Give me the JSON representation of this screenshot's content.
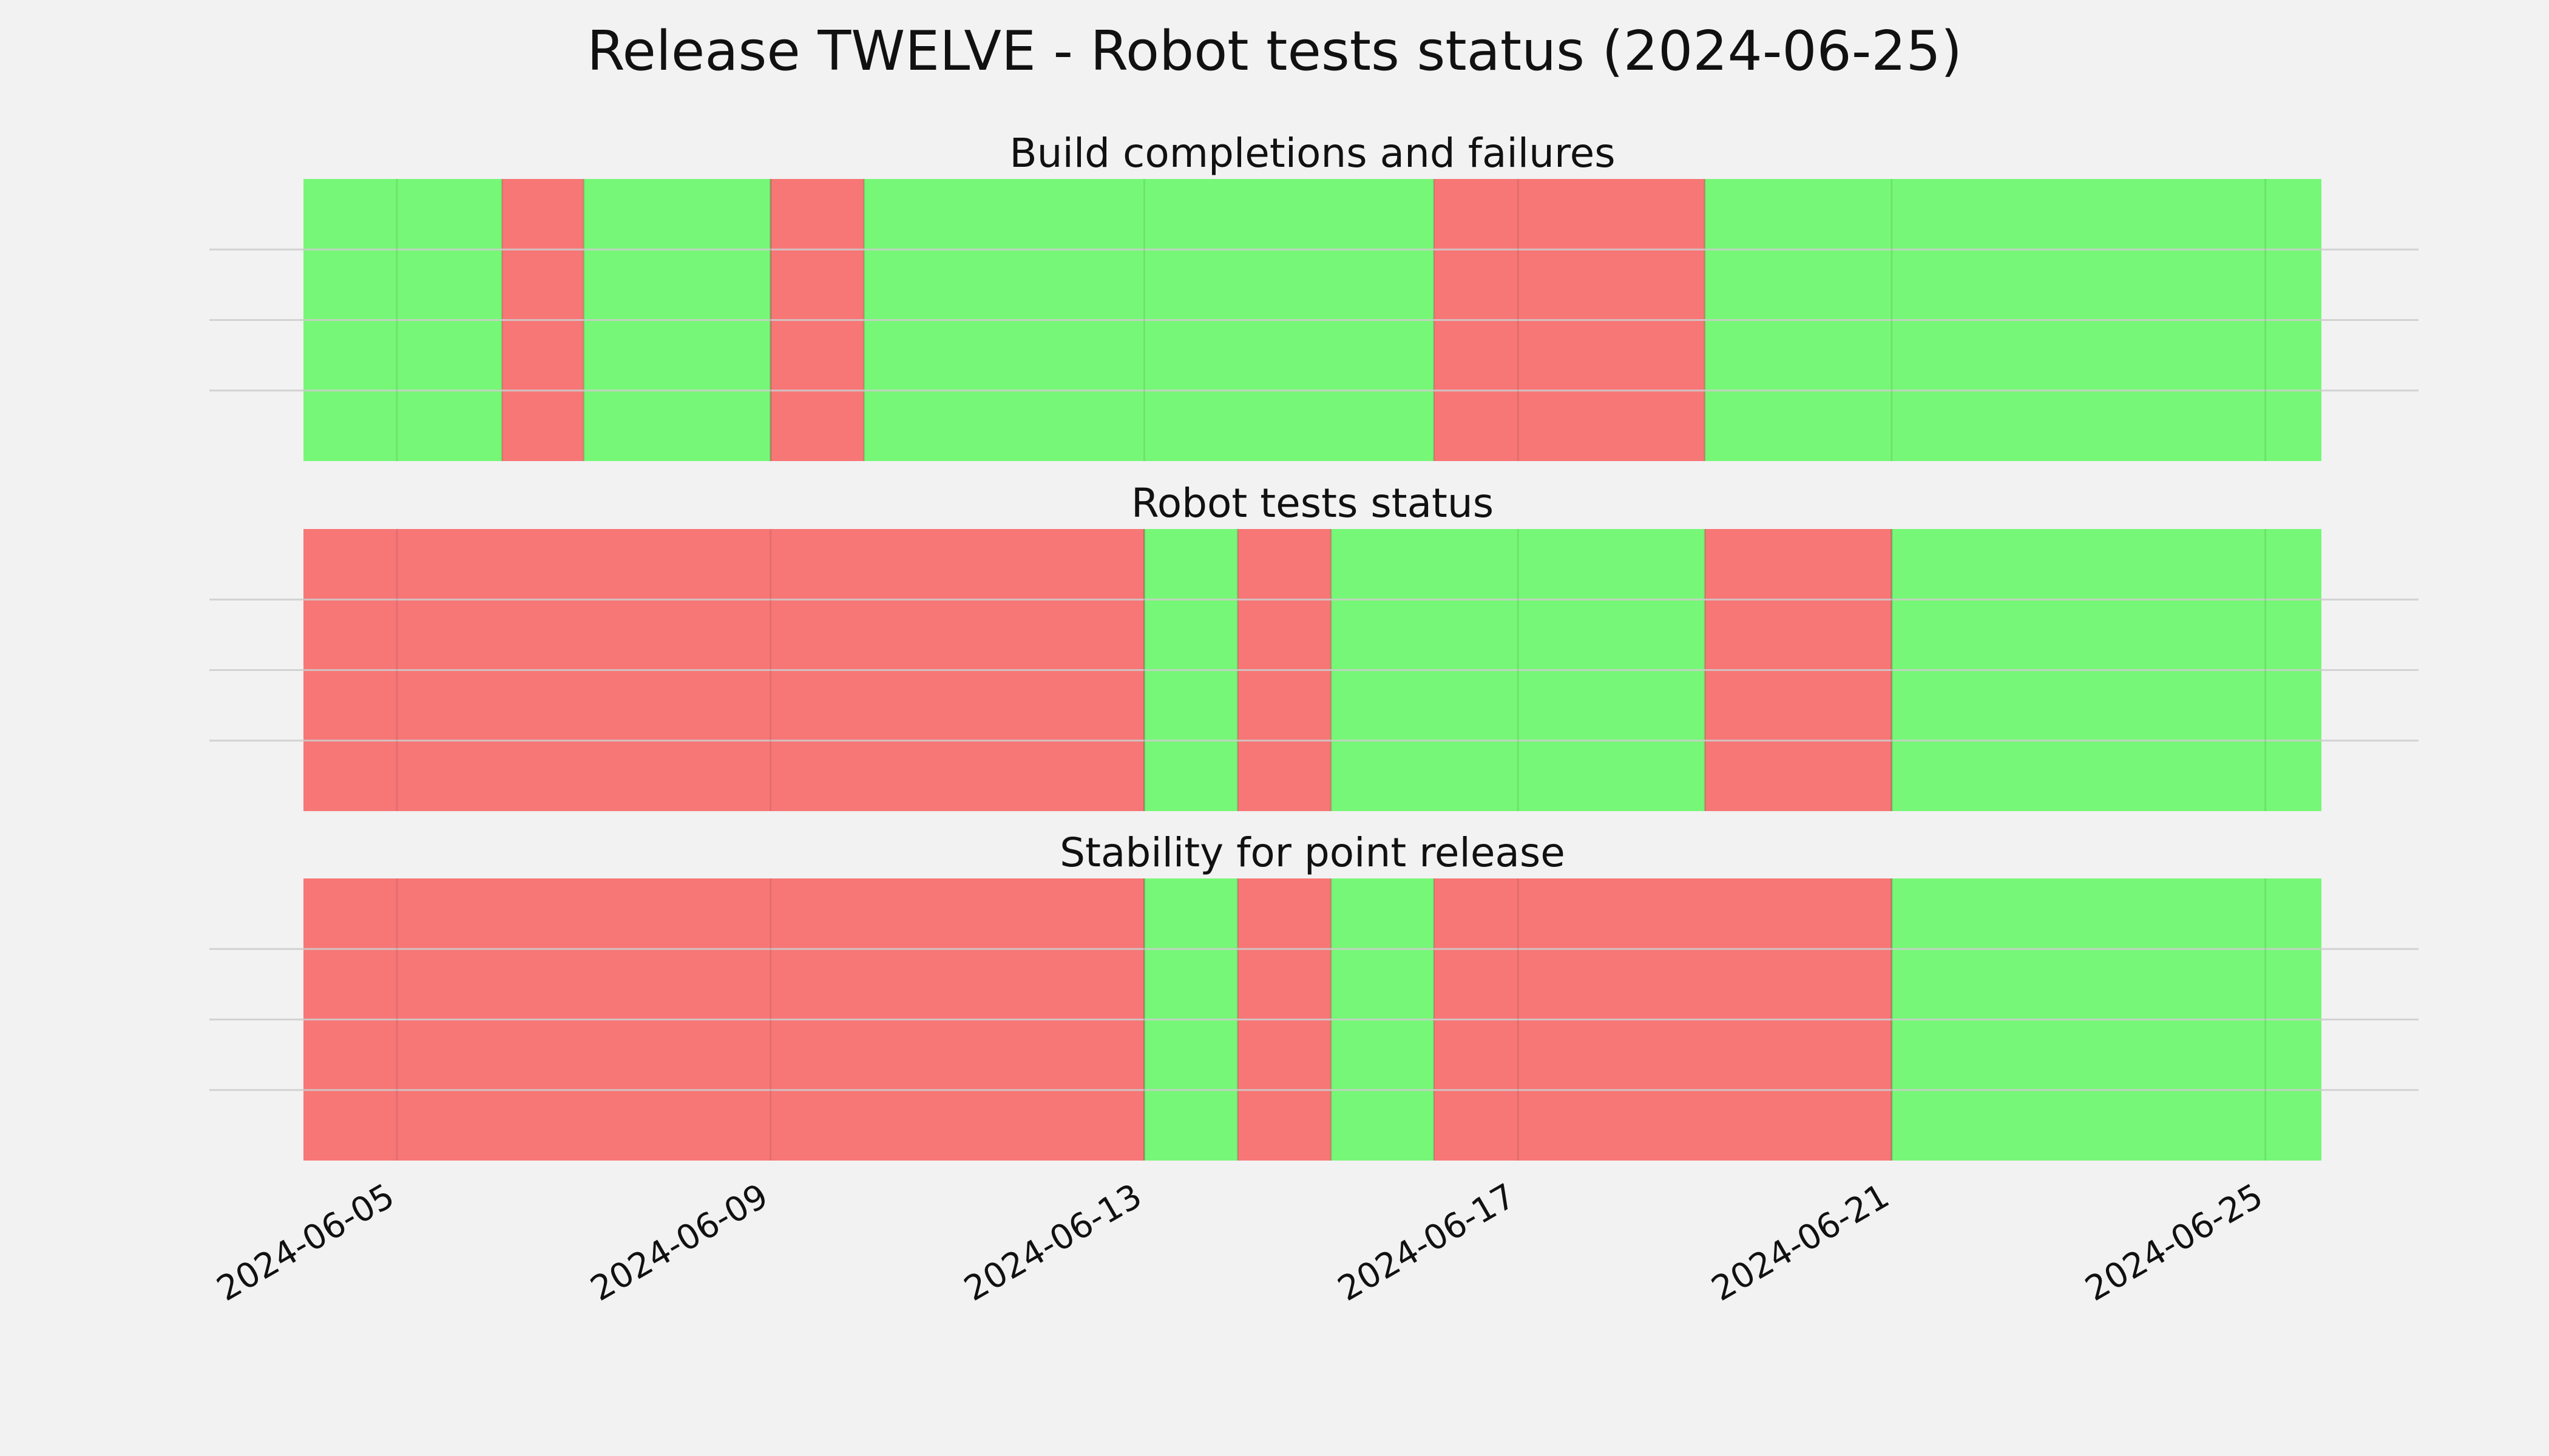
{
  "chart_data": {
    "type": "timeline",
    "title": "Release TWELVE - Robot tests status (2024-06-25)",
    "x_range": [
      "2024-06-04",
      "2024-06-26"
    ],
    "x_ticks": [
      "2024-06-05",
      "2024-06-09",
      "2024-06-13",
      "2024-06-17",
      "2024-06-21",
      "2024-06-25"
    ],
    "grid": true,
    "colors": {
      "pass": "#77f777",
      "fail": "#f77777",
      "background": "#f2f2f2",
      "grid": "#cccccc"
    },
    "panels": [
      {
        "title": "Build completions and failures",
        "segments": [
          {
            "start": "2024-06-04",
            "end": "2024-06-06.125",
            "status": "pass"
          },
          {
            "start": "2024-06-06.125",
            "end": "2024-06-07",
            "status": "fail"
          },
          {
            "start": "2024-06-07",
            "end": "2024-06-09",
            "status": "pass"
          },
          {
            "start": "2024-06-09",
            "end": "2024-06-10",
            "status": "fail"
          },
          {
            "start": "2024-06-10",
            "end": "2024-06-16.1",
            "status": "pass"
          },
          {
            "start": "2024-06-16.1",
            "end": "2024-06-19",
            "status": "fail"
          },
          {
            "start": "2024-06-19",
            "end": "2024-06-25.6",
            "status": "pass"
          }
        ]
      },
      {
        "title": "Robot tests status",
        "segments": [
          {
            "start": "2024-06-04",
            "end": "2024-06-13",
            "status": "fail"
          },
          {
            "start": "2024-06-13",
            "end": "2024-06-14",
            "status": "pass"
          },
          {
            "start": "2024-06-14",
            "end": "2024-06-15",
            "status": "fail"
          },
          {
            "start": "2024-06-15",
            "end": "2024-06-19",
            "status": "pass"
          },
          {
            "start": "2024-06-19",
            "end": "2024-06-21",
            "status": "fail"
          },
          {
            "start": "2024-06-21",
            "end": "2024-06-25.6",
            "status": "pass"
          }
        ]
      },
      {
        "title": "Stability for point release",
        "segments": [
          {
            "start": "2024-06-04",
            "end": "2024-06-13",
            "status": "fail"
          },
          {
            "start": "2024-06-13",
            "end": "2024-06-14",
            "status": "pass"
          },
          {
            "start": "2024-06-14",
            "end": "2024-06-15",
            "status": "fail"
          },
          {
            "start": "2024-06-15",
            "end": "2024-06-16.1",
            "status": "pass"
          },
          {
            "start": "2024-06-16.1",
            "end": "2024-06-21",
            "status": "fail"
          },
          {
            "start": "2024-06-21",
            "end": "2024-06-25.6",
            "status": "pass"
          }
        ]
      }
    ]
  }
}
